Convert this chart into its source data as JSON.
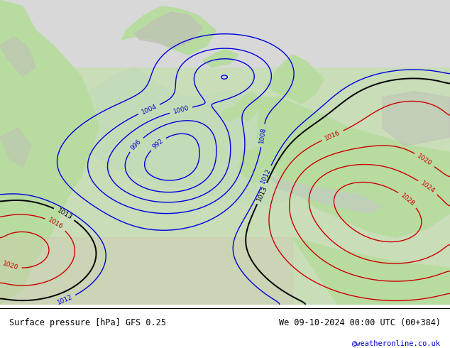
{
  "title_left": "Surface pressure [hPa] GFS 0.25",
  "title_right": "We 09-10-2024 00:00 UTC (00+384)",
  "credit": "@weatheronline.co.uk",
  "isobar_blue_color": "#0000dd",
  "isobar_black_color": "#000000",
  "isobar_red_color": "#cc0000",
  "ocean_color": "#d8e8d0",
  "land_green_color": "#b8dca0",
  "land_gray_color": "#c0c0b8",
  "arctic_color": "#d0d0d0",
  "footer_line_color": "#000000",
  "footer_bg": "#ffffff",
  "credit_color": "#0000cc"
}
